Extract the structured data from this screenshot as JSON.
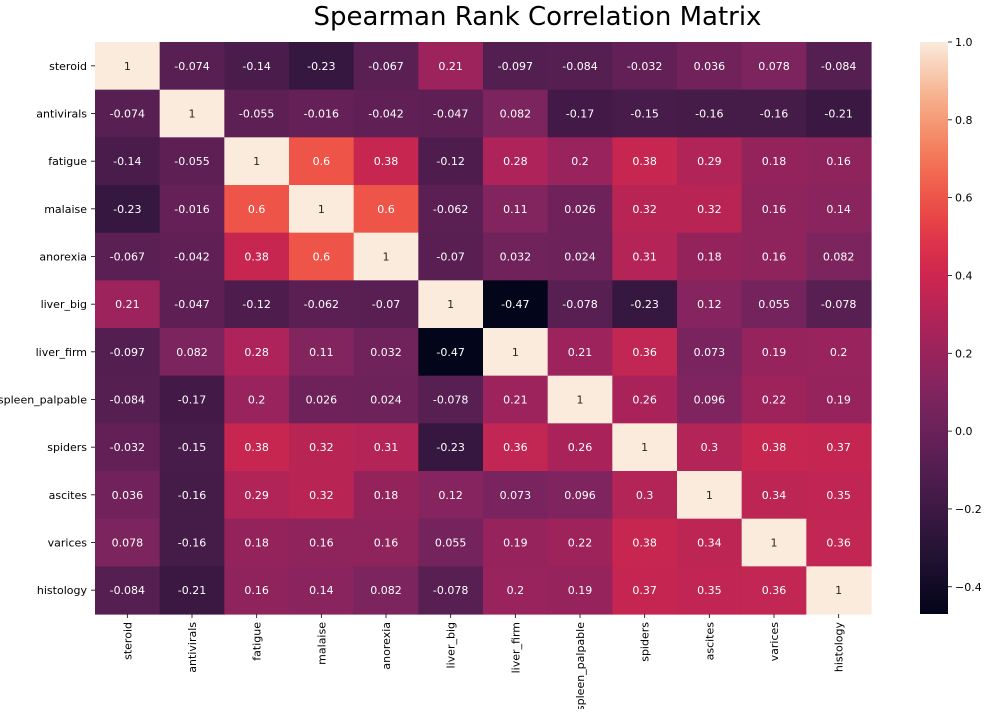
{
  "chart_data": {
    "type": "heatmap",
    "title": "Spearman Rank Correlation Matrix",
    "xlabel": "",
    "ylabel": "",
    "labels": [
      "steroid",
      "antivirals",
      "fatigue",
      "malaise",
      "anorexia",
      "liver_big",
      "liver_firm",
      "spleen_palpable",
      "spiders",
      "ascites",
      "varices",
      "histology"
    ],
    "values": [
      [
        1,
        -0.074,
        -0.14,
        -0.23,
        -0.067,
        0.21,
        -0.097,
        -0.084,
        -0.032,
        0.036,
        0.078,
        -0.084
      ],
      [
        -0.074,
        1,
        -0.055,
        -0.016,
        -0.042,
        -0.047,
        0.082,
        -0.17,
        -0.15,
        -0.16,
        -0.16,
        -0.21
      ],
      [
        -0.14,
        -0.055,
        1,
        0.6,
        0.38,
        -0.12,
        0.28,
        0.2,
        0.38,
        0.29,
        0.18,
        0.16
      ],
      [
        -0.23,
        -0.016,
        0.6,
        1,
        0.6,
        -0.062,
        0.11,
        0.026,
        0.32,
        0.32,
        0.16,
        0.14
      ],
      [
        -0.067,
        -0.042,
        0.38,
        0.6,
        1,
        -0.07,
        0.032,
        0.024,
        0.31,
        0.18,
        0.16,
        0.082
      ],
      [
        0.21,
        -0.047,
        -0.12,
        -0.062,
        -0.07,
        1,
        -0.47,
        -0.078,
        -0.23,
        0.12,
        0.055,
        -0.078
      ],
      [
        -0.097,
        0.082,
        0.28,
        0.11,
        0.032,
        -0.47,
        1,
        0.21,
        0.36,
        0.073,
        0.19,
        0.2
      ],
      [
        -0.084,
        -0.17,
        0.2,
        0.026,
        0.024,
        -0.078,
        0.21,
        1,
        0.26,
        0.096,
        0.22,
        0.19
      ],
      [
        -0.032,
        -0.15,
        0.38,
        0.32,
        0.31,
        -0.23,
        0.36,
        0.26,
        1,
        0.3,
        0.38,
        0.37
      ],
      [
        0.036,
        -0.16,
        0.29,
        0.32,
        0.18,
        0.12,
        0.073,
        0.096,
        0.3,
        1,
        0.34,
        0.35
      ],
      [
        0.078,
        -0.16,
        0.18,
        0.16,
        0.16,
        0.055,
        0.19,
        0.22,
        0.38,
        0.34,
        1,
        0.36
      ],
      [
        -0.084,
        -0.21,
        0.16,
        0.14,
        0.082,
        -0.078,
        0.2,
        0.19,
        0.37,
        0.35,
        0.36,
        1
      ]
    ],
    "colorbar": {
      "min": -0.47,
      "max": 1,
      "ticks": [
        1.0,
        0.8,
        0.6,
        0.4,
        0.2,
        0.0,
        -0.2,
        -0.4
      ],
      "tick_labels": [
        "1.0",
        "0.8",
        "0.6",
        "0.4",
        "0.2",
        "0.0",
        "−0.2",
        "−0.4"
      ],
      "colormap": "rocket"
    },
    "annotated": true,
    "grid": false,
    "legend": "colorbar-right"
  }
}
